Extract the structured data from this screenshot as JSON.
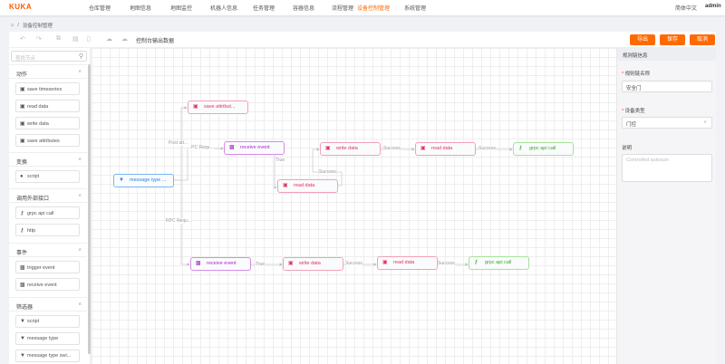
{
  "app": {
    "logo": "KUKA",
    "language": "简体中文",
    "user": "admin"
  },
  "nav": [
    {
      "label": "仓库管理"
    },
    {
      "label": "地图信息"
    },
    {
      "label": "地图监控"
    },
    {
      "label": "机器人信息"
    },
    {
      "label": "任务管理"
    },
    {
      "label": "容器信息"
    },
    {
      "label": "流程管理"
    },
    {
      "label": "设备控制管理",
      "active": true
    },
    {
      "label": "系统管理"
    }
  ],
  "breadcrumb": {
    "separator": "/",
    "current": "设备控制管理"
  },
  "toolbar": {
    "console_output": "控制台输出数据",
    "export": "导出",
    "save": "保存",
    "cancel": "取消"
  },
  "palette": {
    "search_placeholder": "查找节点",
    "sections": [
      {
        "title": "动作",
        "items": [
          "save timeseries",
          "read data",
          "write data",
          "save attributes"
        ]
      },
      {
        "title": "变换",
        "items": [
          "script"
        ]
      },
      {
        "title": "调用外部接口",
        "items": [
          "grpc api call",
          "http"
        ]
      },
      {
        "title": "事件",
        "items": [
          "trigger event",
          "receive event"
        ]
      },
      {
        "title": "筛选器",
        "items": [
          "script",
          "message type",
          "message type swi..."
        ]
      }
    ]
  },
  "flow": {
    "nodes": [
      {
        "label": "save attribut...",
        "type": "action"
      },
      {
        "label": "receive event",
        "type": "event"
      },
      {
        "label": "message type ...",
        "type": "filter"
      },
      {
        "label": "write data",
        "type": "action"
      },
      {
        "label": "read data",
        "type": "action"
      },
      {
        "label": "read data",
        "type": "action"
      },
      {
        "label": "grpc api call",
        "type": "external"
      },
      {
        "label": "receive event",
        "type": "event"
      },
      {
        "label": "write data",
        "type": "action"
      },
      {
        "label": "read data",
        "type": "action"
      },
      {
        "label": "grpc api call",
        "type": "external"
      }
    ],
    "edge_labels": [
      "Post att...",
      "...PC Requ...",
      "True",
      "Success",
      "Success",
      "Success",
      "RPC Requ...",
      "True",
      "Success",
      "Success"
    ]
  },
  "rule_chain": {
    "header": "规则链信息",
    "name_label": "规则链名称",
    "name_value": "安全门",
    "device_type_label": "设备类型",
    "device_type_value": "门控",
    "description_label": "说明",
    "description_placeholder": "Controlled autosize"
  },
  "colors": {
    "accent": "#ff6a00",
    "action": "#e0305d",
    "event": "#a22cc0",
    "filter": "#2b7de9",
    "external": "#3aa52a"
  }
}
